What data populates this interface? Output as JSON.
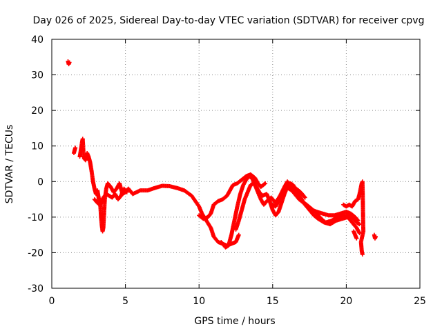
{
  "chart_data": {
    "type": "scatter",
    "title": "Day 026 of 2025, Sidereal Day-to-day VTEC variation (SDTVAR) for receiver cpvg",
    "xlabel": "GPS time / hours",
    "ylabel": "SDTVAR / TECUs",
    "xlim": [
      0,
      25
    ],
    "ylim": [
      -30,
      40
    ],
    "xticks": [
      0,
      5,
      10,
      15,
      20,
      25
    ],
    "yticks": [
      -30,
      -20,
      -10,
      0,
      10,
      20,
      30,
      40
    ],
    "grid": true,
    "marker": "plus",
    "color": "#ff0000",
    "series": [
      {
        "name": "SDTVAR",
        "segments": [
          [
            [
              1.1,
              33.8
            ],
            [
              1.15,
              33.0
            ],
            [
              1.2,
              33.5
            ]
          ],
          [
            [
              1.5,
              8.0
            ],
            [
              1.55,
              8.8
            ],
            [
              1.6,
              9.5
            ]
          ],
          [
            [
              1.9,
              7.0
            ],
            [
              2.0,
              9.5
            ],
            [
              2.05,
              11.0
            ],
            [
              2.1,
              12.0
            ],
            [
              2.15,
              8.0
            ],
            [
              2.2,
              6.5
            ],
            [
              2.3,
              6.0
            ],
            [
              2.4,
              8.0
            ],
            [
              2.5,
              7.0
            ],
            [
              2.6,
              5.5
            ],
            [
              2.7,
              3.0
            ],
            [
              2.8,
              0.0
            ],
            [
              2.9,
              -2.0
            ],
            [
              3.0,
              -3.5
            ],
            [
              3.1,
              -2.5
            ],
            [
              3.2,
              -5.0
            ],
            [
              3.3,
              -7.0
            ],
            [
              3.35,
              -10.0
            ],
            [
              3.4,
              -12.5
            ],
            [
              3.45,
              -14.0
            ],
            [
              3.5,
              -13.0
            ],
            [
              3.55,
              -9.0
            ],
            [
              3.6,
              -5.0
            ],
            [
              3.7,
              -2.0
            ],
            [
              3.8,
              -0.5
            ],
            [
              4.0,
              -1.5
            ],
            [
              4.2,
              -3.0
            ],
            [
              4.4,
              -2.0
            ],
            [
              4.6,
              -0.5
            ],
            [
              4.8,
              -3.5
            ],
            [
              5.0,
              -3.0
            ],
            [
              5.2,
              -2.0
            ],
            [
              5.5,
              -3.5
            ],
            [
              6.0,
              -2.5
            ],
            [
              6.5,
              -2.5
            ],
            [
              7.0,
              -1.8
            ],
            [
              7.5,
              -1.2
            ],
            [
              8.0,
              -1.3
            ],
            [
              8.5,
              -1.8
            ],
            [
              9.0,
              -2.5
            ],
            [
              9.5,
              -4.0
            ],
            [
              10.0,
              -7.0
            ],
            [
              10.2,
              -9.0
            ],
            [
              10.5,
              -11.0
            ],
            [
              10.8,
              -13.0
            ],
            [
              11.0,
              -15.5
            ],
            [
              11.3,
              -17.0
            ],
            [
              11.6,
              -17.5
            ],
            [
              11.9,
              -18.0
            ],
            [
              12.2,
              -17.5
            ],
            [
              12.5,
              -17.0
            ],
            [
              12.6,
              -16.0
            ],
            [
              12.7,
              -15.0
            ]
          ],
          [
            [
              2.9,
              -5.0
            ],
            [
              3.1,
              -6.0
            ],
            [
              3.3,
              -6.5
            ],
            [
              3.5,
              -4.5
            ],
            [
              3.7,
              -3.5
            ],
            [
              3.9,
              -4.0
            ],
            [
              4.1,
              -4.5
            ],
            [
              4.3,
              -3.5
            ],
            [
              4.5,
              -5.0
            ],
            [
              4.7,
              -4.0
            ],
            [
              4.9,
              -2.0
            ],
            [
              5.1,
              -3.0
            ]
          ],
          [
            [
              10.0,
              -9.5
            ],
            [
              10.3,
              -10.5
            ],
            [
              10.6,
              -10.0
            ],
            [
              10.8,
              -9.0
            ],
            [
              11.0,
              -6.5
            ],
            [
              11.3,
              -5.5
            ],
            [
              11.6,
              -5.0
            ],
            [
              11.9,
              -4.0
            ],
            [
              12.1,
              -2.5
            ],
            [
              12.3,
              -1.0
            ],
            [
              12.6,
              -0.5
            ],
            [
              12.9,
              0.5
            ],
            [
              13.2,
              1.5
            ],
            [
              13.5,
              2.0
            ],
            [
              13.8,
              1.0
            ],
            [
              14.0,
              -0.5
            ],
            [
              14.2,
              -1.5
            ],
            [
              14.5,
              -0.5
            ]
          ],
          [
            [
              11.5,
              -17.0
            ],
            [
              11.8,
              -18.5
            ],
            [
              12.0,
              -18.0
            ],
            [
              12.2,
              -15.0
            ],
            [
              12.4,
              -11.0
            ],
            [
              12.6,
              -7.0
            ],
            [
              12.8,
              -3.5
            ],
            [
              13.0,
              -1.0
            ],
            [
              13.2,
              0.5
            ],
            [
              13.4,
              1.5
            ],
            [
              13.6,
              1.0
            ],
            [
              13.8,
              -1.0
            ],
            [
              14.0,
              -3.0
            ],
            [
              14.2,
              -5.0
            ],
            [
              14.4,
              -6.5
            ],
            [
              14.6,
              -5.5
            ],
            [
              14.9,
              -4.5
            ],
            [
              15.2,
              -6.0
            ],
            [
              15.5,
              -4.0
            ],
            [
              15.8,
              -1.5
            ],
            [
              16.0,
              0.0
            ],
            [
              16.2,
              -1.0
            ],
            [
              16.4,
              -2.5
            ],
            [
              16.7,
              -4.0
            ],
            [
              17.0,
              -5.5
            ],
            [
              17.3,
              -6.5
            ],
            [
              17.6,
              -7.5
            ],
            [
              18.0,
              -9.0
            ],
            [
              18.3,
              -10.5
            ],
            [
              18.6,
              -11.5
            ],
            [
              19.0,
              -11.0
            ],
            [
              19.4,
              -10.0
            ],
            [
              19.8,
              -9.5
            ],
            [
              20.2,
              -9.5
            ],
            [
              20.5,
              -10.5
            ],
            [
              20.7,
              -11.5
            ],
            [
              20.9,
              -12.0
            ]
          ],
          [
            [
              12.5,
              -13.5
            ],
            [
              12.7,
              -11.0
            ],
            [
              12.9,
              -8.0
            ],
            [
              13.1,
              -5.0
            ],
            [
              13.3,
              -3.0
            ],
            [
              13.5,
              -1.0
            ],
            [
              13.7,
              -0.5
            ],
            [
              13.9,
              -1.5
            ],
            [
              14.1,
              -3.0
            ],
            [
              14.3,
              -4.0
            ],
            [
              14.6,
              -3.5
            ],
            [
              14.8,
              -5.5
            ],
            [
              15.0,
              -8.0
            ],
            [
              15.2,
              -9.5
            ],
            [
              15.4,
              -8.5
            ],
            [
              15.6,
              -6.0
            ],
            [
              15.8,
              -3.5
            ],
            [
              16.0,
              -1.5
            ],
            [
              16.2,
              -0.5
            ],
            [
              16.4,
              -1.0
            ],
            [
              16.6,
              -2.5
            ],
            [
              16.9,
              -4.5
            ],
            [
              17.2,
              -6.5
            ],
            [
              17.5,
              -8.0
            ],
            [
              17.8,
              -9.5
            ],
            [
              18.1,
              -10.5
            ],
            [
              18.5,
              -11.5
            ],
            [
              18.9,
              -12.0
            ],
            [
              19.3,
              -11.0
            ],
            [
              19.7,
              -10.5
            ],
            [
              20.1,
              -10.0
            ],
            [
              20.4,
              -11.5
            ],
            [
              20.7,
              -13.0
            ],
            [
              20.9,
              -14.5
            ]
          ],
          [
            [
              15.0,
              -6.5
            ],
            [
              15.2,
              -7.0
            ],
            [
              15.4,
              -5.5
            ],
            [
              15.6,
              -3.5
            ],
            [
              15.8,
              -2.0
            ],
            [
              16.0,
              -1.0
            ],
            [
              16.2,
              -2.0
            ],
            [
              16.5,
              -3.5
            ],
            [
              16.8,
              -5.0
            ],
            [
              17.1,
              -6.0
            ],
            [
              17.4,
              -7.0
            ],
            [
              17.7,
              -8.0
            ],
            [
              18.0,
              -8.5
            ],
            [
              18.4,
              -9.0
            ],
            [
              18.8,
              -9.5
            ],
            [
              19.2,
              -9.5
            ],
            [
              19.6,
              -9.0
            ],
            [
              20.0,
              -8.5
            ],
            [
              20.3,
              -9.0
            ],
            [
              20.6,
              -10.0
            ],
            [
              20.8,
              -11.0
            ]
          ],
          [
            [
              15.9,
              -1.5
            ],
            [
              16.3,
              -2.5
            ],
            [
              16.6,
              -2.0
            ],
            [
              16.9,
              -3.0
            ],
            [
              17.2,
              -4.5
            ]
          ],
          [
            [
              19.8,
              -6.5
            ],
            [
              20.0,
              -7.0
            ],
            [
              20.2,
              -6.5
            ],
            [
              20.4,
              -7.0
            ],
            [
              20.6,
              -5.5
            ],
            [
              20.8,
              -5.0
            ],
            [
              20.9,
              -3.5
            ],
            [
              21.0,
              -1.5
            ],
            [
              21.05,
              -0.5
            ],
            [
              21.1,
              0.0
            ],
            [
              21.12,
              -4.0
            ],
            [
              21.14,
              -10.0
            ],
            [
              21.16,
              -14.0
            ],
            [
              21.0,
              -17.0
            ],
            [
              21.05,
              -19.5
            ],
            [
              21.1,
              -20.5
            ]
          ],
          [
            [
              20.5,
              -14.0
            ],
            [
              20.6,
              -15.0
            ],
            [
              20.7,
              -16.0
            ]
          ],
          [
            [
              21.9,
              -15.0
            ],
            [
              21.95,
              -16.0
            ],
            [
              22.0,
              -15.5
            ]
          ]
        ]
      }
    ]
  }
}
